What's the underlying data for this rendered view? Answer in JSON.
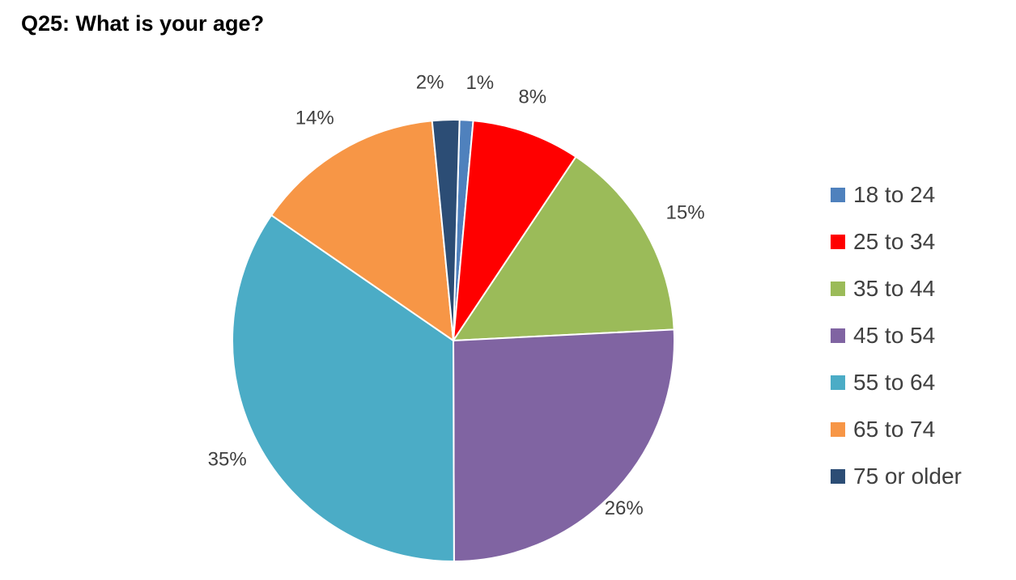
{
  "chart_data": {
    "type": "pie",
    "title": "Q25: What is your age?",
    "categories": [
      "18 to 24",
      "25 to 34",
      "35 to 44",
      "45 to 54",
      "55 to 64",
      "65 to 74",
      "75 or older"
    ],
    "values": [
      1,
      8,
      15,
      26,
      35,
      14,
      2
    ],
    "data_labels": [
      "1%",
      "8%",
      "15%",
      "26%",
      "35%",
      "14%",
      "2%"
    ],
    "colors": [
      "#4F81BD",
      "#FF0000",
      "#9BBB59",
      "#8064A2",
      "#4BACC6",
      "#F79646",
      "#2C4D75"
    ],
    "legend_position": "right"
  }
}
